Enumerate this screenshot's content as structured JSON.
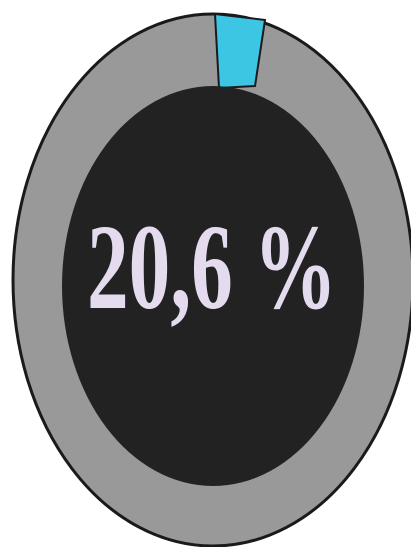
{
  "gauge": {
    "label": "20,6 %"
  }
}
